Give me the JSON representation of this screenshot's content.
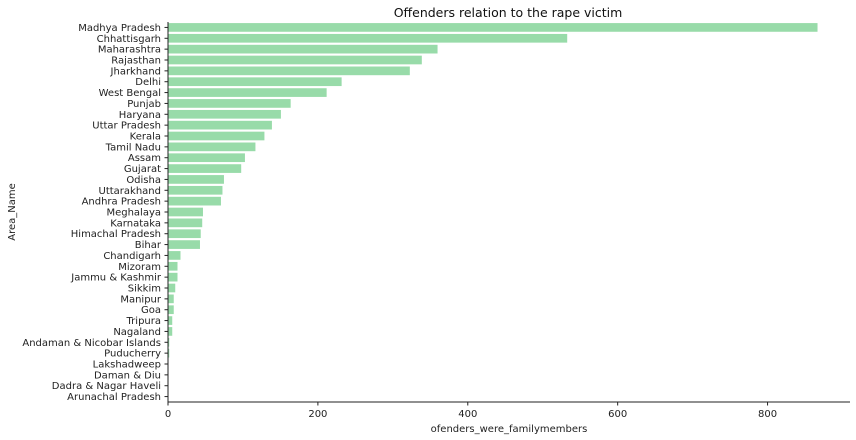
{
  "chart_data": {
    "type": "bar",
    "orientation": "horizontal",
    "title": "Offenders relation to the rape victim",
    "xlabel": "ofenders_were_familymembers",
    "ylabel": "Area_Name",
    "xlim": [
      0,
      910
    ],
    "xticks": [
      0,
      200,
      400,
      600,
      800
    ],
    "grid": false,
    "bar_color": "#98dba9",
    "categories": [
      "Madhya Pradesh",
      "Chhattisgarh",
      "Maharashtra",
      "Rajasthan",
      "Jharkhand",
      "Delhi",
      "West Bengal",
      "Punjab",
      "Haryana",
      "Uttar Pradesh",
      "Kerala",
      "Tamil Nadu",
      "Assam",
      "Gujarat",
      "Odisha",
      "Uttarakhand",
      "Andhra Pradesh",
      "Meghalaya",
      "Karnataka",
      "Himachal Pradesh",
      "Bihar",
      "Chandigarh",
      "Mizoram",
      "Jammu & Kashmir",
      "Sikkim",
      "Manipur",
      "Goa",
      "Tripura",
      "Nagaland",
      "Andaman & Nicobar Islands",
      "Puducherry",
      "Lakshadweep",
      "Daman & Diu",
      "Dadra & Nagar Haveli",
      "Arunachal Pradesh"
    ],
    "values": [
      866,
      532,
      359,
      338,
      322,
      231,
      211,
      163,
      150,
      138,
      128,
      116,
      102,
      97,
      74,
      72,
      70,
      46,
      45,
      43,
      42,
      16,
      12,
      12,
      9,
      7,
      7,
      5,
      5,
      1,
      1,
      0,
      0,
      0,
      0
    ]
  }
}
